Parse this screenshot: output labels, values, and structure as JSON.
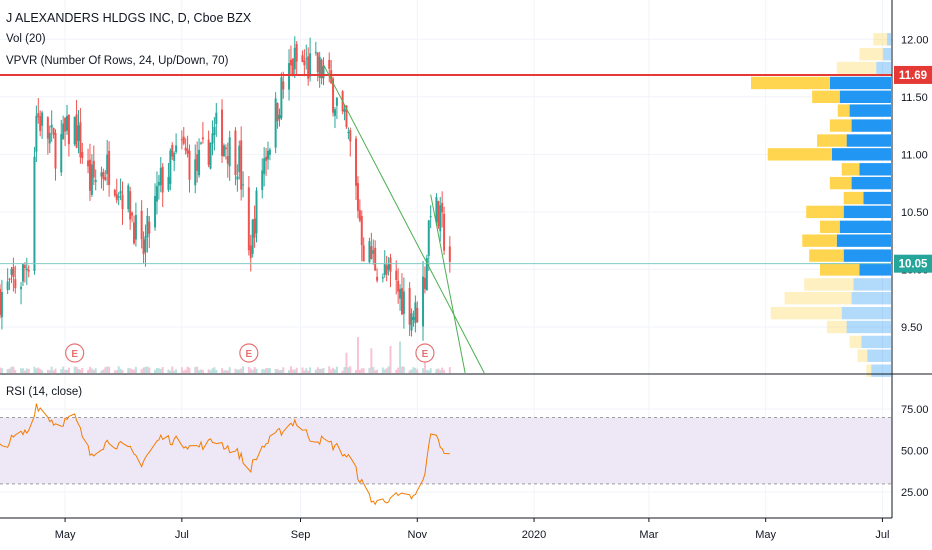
{
  "header": {
    "title": "J ALEXANDERS HLDGS INC, D, Cboe BZX",
    "volume_indicator": "Vol (20)",
    "vpvr_indicator": "VPVR (Number Of Rows, 24, Up/Down, 70)",
    "rsi_indicator": "RSI (14, close)"
  },
  "colors": {
    "up": "#26a69a",
    "down": "#ef5350",
    "resistance_line": "#e53935",
    "trend_line": "#4caf50",
    "current_price_line": "#80cbc4",
    "rsi_line": "#f57c00",
    "rsi_band": "#ede7f6",
    "vpvr_up": "#2196f3",
    "vpvr_down": "#ffd54f"
  },
  "price_badges": {
    "resistance": "11.69",
    "current": "10.05"
  },
  "earnings_marker": "E",
  "chart_data": [
    {
      "type": "candlestick",
      "title": "J ALEXANDERS HLDGS INC, D, Cboe BZX",
      "x_ticks": [
        "May",
        "Jul",
        "Sep",
        "Nov",
        "2020",
        "Mar",
        "May",
        "Jul"
      ],
      "y_ticks": [
        "12.00",
        "11.50",
        "11.00",
        "10.50",
        "10.00",
        "9.50"
      ],
      "ylim": [
        9.1,
        12.15
      ],
      "x_range": [
        "2019-03-28",
        "2020-07-06"
      ],
      "horizontal_lines": [
        {
          "label": "11.69",
          "value": 11.69
        },
        {
          "label": "10.05",
          "value": 10.05
        }
      ],
      "trend_lines": [
        {
          "from": [
            "2019-09-13",
            11.78
          ],
          "to": [
            "2019-12-06",
            9.1
          ]
        },
        {
          "from": [
            "2019-11-08",
            10.65
          ],
          "to": [
            "2019-11-26",
            9.1
          ]
        }
      ],
      "earnings_dates": [
        "2019-05-06",
        "2019-08-05",
        "2019-11-05"
      ],
      "close_path": [
        [
          "2019-03-28",
          9.78
        ],
        [
          "2019-04-08",
          9.92
        ],
        [
          "2019-04-12",
          10.1
        ],
        [
          "2019-04-16",
          11.35
        ],
        [
          "2019-04-26",
          11.05
        ],
        [
          "2019-05-06",
          11.25
        ],
        [
          "2019-05-14",
          10.75
        ],
        [
          "2019-05-24",
          10.9
        ],
        [
          "2019-06-04",
          10.55
        ],
        [
          "2019-06-10",
          10.1
        ],
        [
          "2019-06-20",
          10.75
        ],
        [
          "2019-07-01",
          11.05
        ],
        [
          "2019-07-08",
          10.85
        ],
        [
          "2019-07-19",
          11.2
        ],
        [
          "2019-07-31",
          10.95
        ],
        [
          "2019-08-05",
          10.1
        ],
        [
          "2019-08-12",
          10.9
        ],
        [
          "2019-08-22",
          11.55
        ],
        [
          "2019-08-29",
          11.8
        ],
        [
          "2019-09-06",
          11.75
        ],
        [
          "2019-09-13",
          11.72
        ],
        [
          "2019-09-20",
          11.45
        ],
        [
          "2019-09-27",
          11.05
        ],
        [
          "2019-10-04",
          10.2
        ],
        [
          "2019-10-14",
          9.98
        ],
        [
          "2019-10-25",
          9.75
        ],
        [
          "2019-10-31",
          9.6
        ],
        [
          "2019-11-05",
          9.95
        ],
        [
          "2019-11-08",
          10.6
        ],
        [
          "2019-11-14",
          10.35
        ],
        [
          "2019-11-18",
          10.1
        ]
      ],
      "volume_spikes": [
        [
          "2019-09-25",
          0.45
        ],
        [
          "2019-10-01",
          0.8
        ],
        [
          "2019-10-08",
          0.55
        ],
        [
          "2019-10-18",
          0.6
        ],
        [
          "2019-10-23",
          0.7
        ],
        [
          "2019-11-05",
          0.25
        ]
      ],
      "vpvr_rows": [
        {
          "price": 12.0,
          "up": 4,
          "down": 14
        },
        {
          "price": 11.87,
          "up": 8,
          "down": 24
        },
        {
          "price": 11.75,
          "up": 15,
          "down": 40
        },
        {
          "price": 11.62,
          "up": 62,
          "down": 80
        },
        {
          "price": 11.5,
          "up": 52,
          "down": 28
        },
        {
          "price": 11.38,
          "up": 42,
          "down": 12
        },
        {
          "price": 11.25,
          "up": 40,
          "down": 22
        },
        {
          "price": 11.12,
          "up": 45,
          "down": 30
        },
        {
          "price": 11.0,
          "up": 60,
          "down": 65
        },
        {
          "price": 10.87,
          "up": 32,
          "down": 18
        },
        {
          "price": 10.75,
          "up": 40,
          "down": 22
        },
        {
          "price": 10.62,
          "up": 28,
          "down": 20
        },
        {
          "price": 10.5,
          "up": 48,
          "down": 38
        },
        {
          "price": 10.37,
          "up": 52,
          "down": 20
        },
        {
          "price": 10.25,
          "up": 55,
          "down": 35
        },
        {
          "price": 10.12,
          "up": 48,
          "down": 35
        },
        {
          "price": 10.0,
          "up": 32,
          "down": 40
        },
        {
          "price": 9.87,
          "up": 38,
          "down": 50
        },
        {
          "price": 9.75,
          "up": 40,
          "down": 68
        },
        {
          "price": 9.62,
          "up": 50,
          "down": 72
        },
        {
          "price": 9.5,
          "up": 45,
          "down": 20
        },
        {
          "price": 9.37,
          "up": 30,
          "down": 12
        },
        {
          "price": 9.25,
          "up": 24,
          "down": 10
        },
        {
          "price": 9.12,
          "up": 20,
          "down": 5
        }
      ]
    },
    {
      "type": "line",
      "title": "RSI (14, close)",
      "y_ticks": [
        "75.00",
        "50.00",
        "25.00"
      ],
      "ylim": [
        10,
        95
      ],
      "band": [
        30,
        70
      ],
      "path": [
        [
          "2019-03-28",
          52
        ],
        [
          "2019-04-05",
          58
        ],
        [
          "2019-04-12",
          62
        ],
        [
          "2019-04-16",
          78
        ],
        [
          "2019-04-26",
          66
        ],
        [
          "2019-05-06",
          70
        ],
        [
          "2019-05-14",
          48
        ],
        [
          "2019-05-24",
          56
        ],
        [
          "2019-06-04",
          50
        ],
        [
          "2019-06-10",
          43
        ],
        [
          "2019-06-20",
          58
        ],
        [
          "2019-07-01",
          55
        ],
        [
          "2019-07-08",
          52
        ],
        [
          "2019-07-19",
          56
        ],
        [
          "2019-07-31",
          48
        ],
        [
          "2019-08-05",
          38
        ],
        [
          "2019-08-12",
          52
        ],
        [
          "2019-08-22",
          62
        ],
        [
          "2019-08-29",
          68
        ],
        [
          "2019-09-06",
          58
        ],
        [
          "2019-09-13",
          56
        ],
        [
          "2019-09-20",
          52
        ],
        [
          "2019-09-27",
          45
        ],
        [
          "2019-10-04",
          28
        ],
        [
          "2019-10-10",
          18
        ],
        [
          "2019-10-18",
          22
        ],
        [
          "2019-10-25",
          22
        ],
        [
          "2019-10-31",
          22
        ],
        [
          "2019-11-05",
          35
        ],
        [
          "2019-11-08",
          62
        ],
        [
          "2019-11-14",
          52
        ],
        [
          "2019-11-18",
          46
        ]
      ]
    }
  ]
}
